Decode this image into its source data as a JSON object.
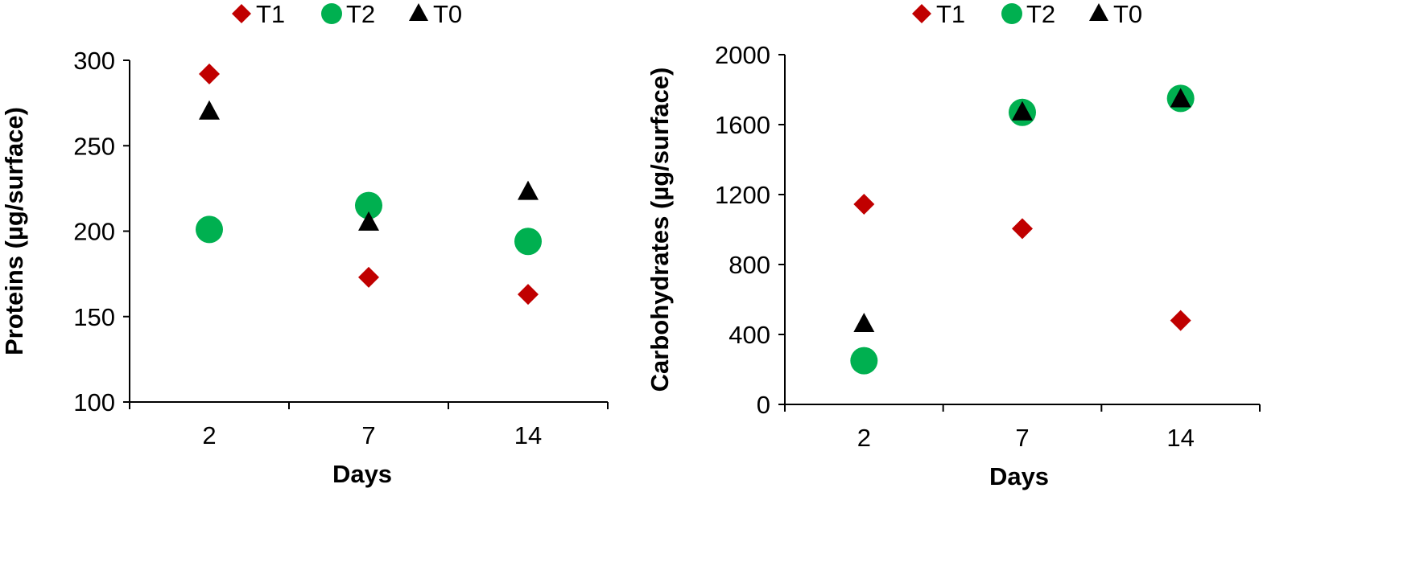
{
  "chart_data": [
    {
      "type": "scatter",
      "categories": [
        "2",
        "7",
        "14"
      ],
      "xlabel": "Days",
      "ylabel": "Proteins (µg/surface)",
      "ylim": [
        100,
        300
      ],
      "yticks": [
        100,
        150,
        200,
        250,
        300
      ],
      "grid": false,
      "legend_position": "top",
      "series": [
        {
          "name": "T1",
          "marker": "diamond",
          "color": "#c00000",
          "values": [
            292,
            173,
            163
          ]
        },
        {
          "name": "T2",
          "marker": "circle",
          "color": "#00b050",
          "values": [
            201,
            215,
            194
          ]
        },
        {
          "name": "T0",
          "marker": "triangle",
          "color": "#000000",
          "values": [
            270,
            205,
            223
          ]
        }
      ]
    },
    {
      "type": "scatter",
      "categories": [
        "2",
        "7",
        "14"
      ],
      "xlabel": "Days",
      "ylabel": "Carbohydrates (µg/surface)",
      "ylim": [
        0,
        2000
      ],
      "yticks": [
        0,
        400,
        800,
        1200,
        1600,
        2000
      ],
      "grid": false,
      "legend_position": "top",
      "series": [
        {
          "name": "T1",
          "marker": "diamond",
          "color": "#c00000",
          "values": [
            1145,
            1005,
            480
          ]
        },
        {
          "name": "T2",
          "marker": "circle",
          "color": "#00b050",
          "values": [
            250,
            1670,
            1750
          ]
        },
        {
          "name": "T0",
          "marker": "triangle",
          "color": "#000000",
          "values": [
            460,
            1670,
            1745
          ]
        }
      ]
    }
  ]
}
